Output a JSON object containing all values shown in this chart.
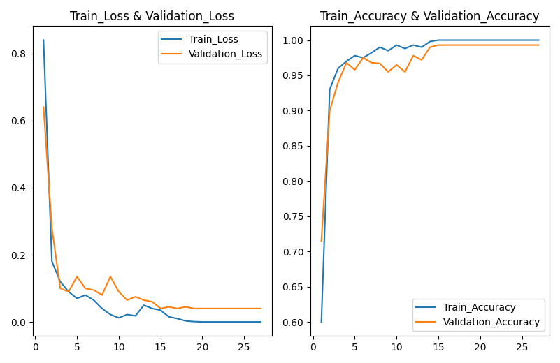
{
  "train_loss": [
    0.84,
    0.18,
    0.12,
    0.09,
    0.07,
    0.08,
    0.065,
    0.04,
    0.022,
    0.012,
    0.022,
    0.018,
    0.05,
    0.04,
    0.035,
    0.015,
    0.01,
    0.003,
    0.001,
    0.0,
    0.0,
    0.0,
    0.0,
    0.0,
    0.0,
    0.0,
    0.0
  ],
  "val_loss": [
    0.64,
    0.28,
    0.1,
    0.09,
    0.135,
    0.1,
    0.095,
    0.08,
    0.135,
    0.09,
    0.065,
    0.075,
    0.065,
    0.06,
    0.04,
    0.045,
    0.04,
    0.045,
    0.04,
    0.04,
    0.04,
    0.04,
    0.04,
    0.04,
    0.04,
    0.04,
    0.04
  ],
  "train_acc": [
    0.6,
    0.93,
    0.96,
    0.97,
    0.978,
    0.975,
    0.982,
    0.99,
    0.985,
    0.993,
    0.988,
    0.993,
    0.99,
    0.998,
    1.0,
    1.0,
    1.0,
    1.0,
    1.0,
    1.0,
    1.0,
    1.0,
    1.0,
    1.0,
    1.0,
    1.0,
    1.0
  ],
  "val_acc": [
    0.715,
    0.9,
    0.94,
    0.968,
    0.958,
    0.975,
    0.968,
    0.967,
    0.955,
    0.965,
    0.955,
    0.978,
    0.972,
    0.99,
    0.993,
    0.993,
    0.993,
    0.993,
    0.993,
    0.993,
    0.993,
    0.993,
    0.993,
    0.993,
    0.993,
    0.993,
    0.993
  ],
  "epochs": 27,
  "train_loss_color": "#1f77b4",
  "val_loss_color": "#ff7f0e",
  "train_acc_color": "#1f77b4",
  "val_acc_color": "#ff7f0e",
  "loss_title": "Train_Loss & Validation_Loss",
  "acc_title": "Train_Accuracy & Validation_Accuracy",
  "loss_legend": [
    "Train_Loss",
    "Validation_Loss"
  ],
  "acc_legend": [
    "Train_Accuracy",
    "Validation_Accuracy"
  ]
}
